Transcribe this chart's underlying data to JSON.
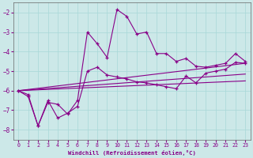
{
  "xlabel": "Windchill (Refroidissement éolien,°C)",
  "bg_color": "#cce8e8",
  "line_color": "#880088",
  "xlim": [
    -0.5,
    23.5
  ],
  "ylim": [
    -8.5,
    -1.5
  ],
  "yticks": [
    -8,
    -7,
    -6,
    -5,
    -4,
    -3,
    -2
  ],
  "xticks": [
    0,
    1,
    2,
    3,
    4,
    5,
    6,
    7,
    8,
    9,
    10,
    11,
    12,
    13,
    14,
    15,
    16,
    17,
    18,
    19,
    20,
    21,
    22,
    23
  ],
  "series1_x": [
    0,
    1,
    2,
    3,
    4,
    5,
    6,
    7,
    8,
    9,
    10,
    11,
    12,
    13,
    14,
    15,
    16,
    17,
    18,
    19,
    20,
    21,
    22,
    23
  ],
  "series1_y": [
    -6.0,
    -6.3,
    -7.8,
    -6.6,
    -6.7,
    -7.2,
    -6.5,
    -3.0,
    -3.6,
    -4.3,
    -1.85,
    -2.2,
    -3.1,
    -3.0,
    -4.1,
    -4.1,
    -4.5,
    -4.35,
    -4.75,
    -4.8,
    -4.7,
    -4.6,
    -4.1,
    -4.5
  ],
  "series2_x": [
    0,
    1,
    2,
    3,
    4,
    5,
    6,
    7,
    8,
    9,
    10,
    11,
    12,
    13,
    14,
    15,
    16,
    17,
    18,
    19,
    20,
    21,
    22,
    23
  ],
  "series2_y": [
    -6.0,
    -6.2,
    -7.8,
    -6.5,
    -7.4,
    -7.15,
    -6.8,
    -5.0,
    -4.8,
    -5.2,
    -5.3,
    -5.4,
    -5.55,
    -5.6,
    -5.7,
    -5.8,
    -5.9,
    -5.25,
    -5.6,
    -5.1,
    -5.0,
    -4.9,
    -4.55,
    -4.6
  ],
  "line1_x": [
    0,
    23
  ],
  "line1_y": [
    -6.0,
    -4.6
  ],
  "line2_x": [
    0,
    23
  ],
  "line2_y": [
    -6.0,
    -5.15
  ],
  "line3_x": [
    0,
    23
  ],
  "line3_y": [
    -6.0,
    -5.5
  ],
  "grid_color": "#a8d8d8"
}
